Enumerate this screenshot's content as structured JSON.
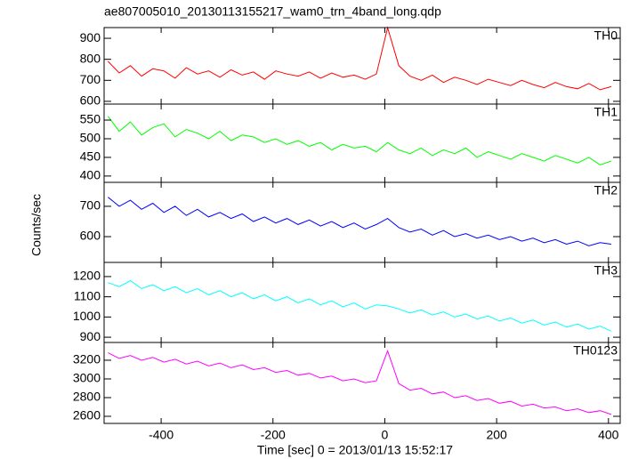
{
  "chart_data": {
    "type": "line",
    "title": "ae807005010_20130113155217_wam0_trn_4band_long.qdp",
    "xlabel": "Time [sec] 0 = 2013/01/13 15:52:17",
    "ylabel": "Counts/sec",
    "xlim": [
      -502,
      421
    ],
    "xticks": [
      -400,
      -200,
      0,
      200,
      400
    ],
    "x": [
      -495,
      -475,
      -455,
      -435,
      -415,
      -395,
      -375,
      -355,
      -335,
      -315,
      -295,
      -275,
      -255,
      -235,
      -215,
      -195,
      -175,
      -155,
      -135,
      -115,
      -95,
      -75,
      -55,
      -35,
      -15,
      5,
      25,
      45,
      65,
      85,
      105,
      125,
      145,
      165,
      185,
      205,
      225,
      245,
      265,
      285,
      305,
      325,
      345,
      365,
      385,
      405
    ],
    "panels": [
      {
        "name": "TH0",
        "color": "#ff0000",
        "ylim": [
          587,
          951
        ],
        "yticks": [
          600,
          700,
          800,
          900
        ],
        "values": [
          790,
          735,
          770,
          720,
          755,
          745,
          710,
          760,
          730,
          745,
          715,
          750,
          725,
          740,
          705,
          745,
          730,
          720,
          740,
          710,
          735,
          715,
          725,
          705,
          730,
          950,
          770,
          720,
          700,
          725,
          690,
          715,
          700,
          680,
          705,
          690,
          675,
          700,
          680,
          665,
          690,
          670,
          660,
          685,
          655,
          670
        ]
      },
      {
        "name": "TH1",
        "color": "#00ff00",
        "ylim": [
          383,
          593
        ],
        "yticks": [
          400,
          450,
          500,
          550
        ],
        "values": [
          560,
          520,
          545,
          510,
          530,
          540,
          505,
          525,
          515,
          500,
          520,
          495,
          510,
          505,
          490,
          500,
          485,
          495,
          480,
          490,
          470,
          485,
          475,
          480,
          465,
          490,
          470,
          460,
          475,
          455,
          470,
          460,
          475,
          450,
          465,
          455,
          445,
          460,
          450,
          440,
          455,
          445,
          435,
          450,
          430,
          440
        ]
      },
      {
        "name": "TH2",
        "color": "#0000ff",
        "ylim": [
          515,
          779
        ],
        "yticks": [
          600,
          700
        ],
        "values": [
          730,
          700,
          720,
          690,
          710,
          680,
          700,
          670,
          690,
          665,
          680,
          660,
          675,
          650,
          665,
          645,
          660,
          640,
          655,
          635,
          650,
          630,
          645,
          625,
          640,
          660,
          630,
          615,
          625,
          605,
          620,
          600,
          610,
          595,
          605,
          590,
          600,
          585,
          595,
          580,
          590,
          575,
          585,
          570,
          580,
          575
        ]
      },
      {
        "name": "TH3",
        "color": "#00ffff",
        "ylim": [
          874,
          1270
        ],
        "yticks": [
          900,
          1000,
          1100,
          1200
        ],
        "values": [
          1170,
          1150,
          1180,
          1140,
          1160,
          1130,
          1150,
          1120,
          1140,
          1110,
          1130,
          1100,
          1120,
          1090,
          1110,
          1080,
          1100,
          1070,
          1090,
          1060,
          1080,
          1050,
          1070,
          1040,
          1060,
          1055,
          1040,
          1020,
          1035,
          1010,
          1025,
          1000,
          1015,
          990,
          1005,
          980,
          995,
          970,
          985,
          960,
          975,
          950,
          965,
          940,
          955,
          930
        ]
      },
      {
        "name": "TH0123",
        "color": "#ff00ff",
        "ylim": [
          2524,
          3390
        ],
        "yticks": [
          2600,
          2800,
          3000,
          3200
        ],
        "values": [
          3280,
          3220,
          3250,
          3200,
          3230,
          3180,
          3210,
          3160,
          3190,
          3140,
          3170,
          3120,
          3150,
          3100,
          3120,
          3070,
          3090,
          3040,
          3060,
          3010,
          3030,
          2980,
          3000,
          2960,
          2980,
          3300,
          2950,
          2880,
          2900,
          2840,
          2860,
          2800,
          2820,
          2770,
          2790,
          2740,
          2760,
          2710,
          2730,
          2690,
          2700,
          2660,
          2680,
          2640,
          2660,
          2620
        ]
      }
    ]
  }
}
